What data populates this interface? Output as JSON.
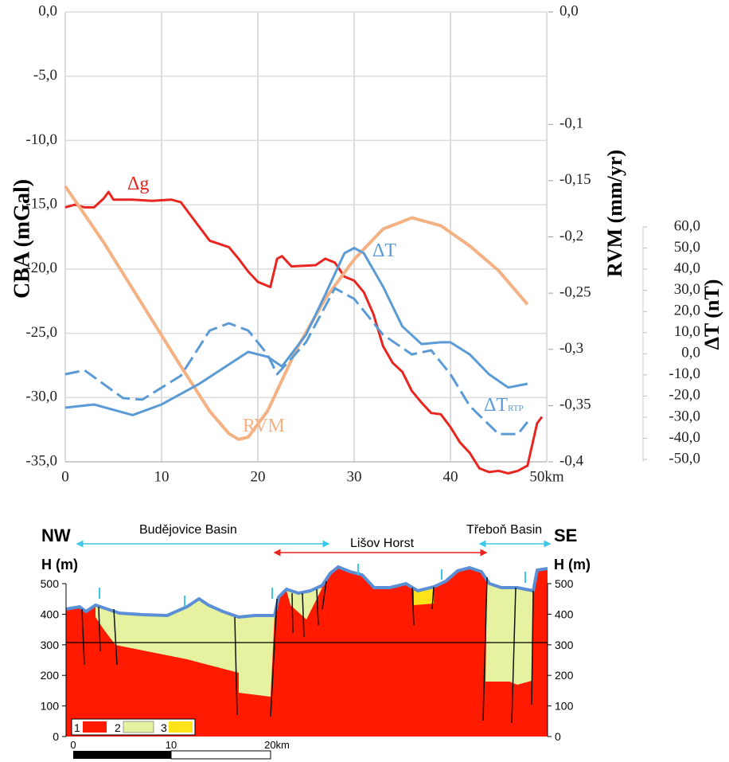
{
  "chart_data": {
    "type": "line",
    "y_label": "CBA (mGal)",
    "y2_label": "RVM (mm/yr)",
    "y3_label": "ΔT (nT)",
    "xlim": [
      0,
      50
    ],
    "xticks": [
      0,
      10,
      20,
      30,
      40,
      {
        "value": 50,
        "label": "50km"
      }
    ],
    "ylim": [
      -35,
      0
    ],
    "yticks": [
      {
        "value": 0,
        "label": "0,0"
      },
      {
        "value": -5,
        "label": "-5,0"
      },
      {
        "value": -10,
        "label": "-10,0"
      },
      {
        "value": -15,
        "label": "-15,0"
      },
      {
        "value": -20,
        "label": "-20,0"
      },
      {
        "value": -25,
        "label": "-25,0"
      },
      {
        "value": -30,
        "label": "-30,0"
      },
      {
        "value": -35,
        "label": "-35,0"
      }
    ],
    "y2lim": [
      -0.4,
      0
    ],
    "y2ticks": [
      {
        "value": 0,
        "label": "0,0"
      },
      {
        "value": -0.1,
        "label": "-0,1"
      },
      {
        "value": -0.15,
        "label": "-0,15"
      },
      {
        "value": -0.2,
        "label": "-0,2"
      },
      {
        "value": -0.25,
        "label": "-0,25"
      },
      {
        "value": -0.3,
        "label": "-0,3"
      },
      {
        "value": -0.35,
        "label": "-0,35"
      },
      {
        "value": -0.4,
        "label": "-0,4"
      }
    ],
    "y3lim": [
      -50,
      60
    ],
    "y3ticks": [
      {
        "value": 60,
        "label": "60,0"
      },
      {
        "value": 50,
        "label": "50,0"
      },
      {
        "value": 40,
        "label": "40,0"
      },
      {
        "value": 30,
        "label": "30,0"
      },
      {
        "value": 20,
        "label": "20,0"
      },
      {
        "value": 10,
        "label": "10,0"
      },
      {
        "value": 0,
        "label": "0,0"
      },
      {
        "value": -10,
        "label": "-10,0"
      },
      {
        "value": -20,
        "label": "-20,0"
      },
      {
        "value": -30,
        "label": "-30,0"
      },
      {
        "value": -40,
        "label": "-40,0"
      },
      {
        "value": -50,
        "label": "-50,0"
      }
    ],
    "grid": true,
    "series": [
      {
        "name": "Δg",
        "color": "#e8251f",
        "axis": "y",
        "dash": false,
        "x": [
          0,
          1,
          2,
          3,
          4,
          4.5,
          5,
          7,
          9,
          11,
          12,
          13,
          14,
          15,
          17,
          18,
          19,
          20,
          21.3,
          22,
          22.5,
          23.5,
          26,
          27,
          28,
          29,
          30,
          31,
          32,
          33,
          34,
          35,
          36,
          37,
          38,
          39,
          40,
          41,
          42,
          43,
          44,
          45,
          46,
          47,
          48,
          49,
          49.5
        ],
        "values": [
          -15.2,
          -15,
          -15.2,
          -15.2,
          -14.5,
          -14,
          -14.6,
          -14.6,
          -14.7,
          -14.6,
          -14.8,
          -15.8,
          -16.8,
          -17.8,
          -18.3,
          -19.2,
          -20.2,
          -21,
          -21.4,
          -19.2,
          -19,
          -19.8,
          -19.7,
          -19.2,
          -19.5,
          -20.6,
          -20.9,
          -21.8,
          -23.5,
          -26,
          -27.3,
          -28,
          -29.5,
          -30.4,
          -31.2,
          -31.3,
          -32.3,
          -33.5,
          -34.3,
          -35.5,
          -35.8,
          -35.7,
          -35.9,
          -35.7,
          -35.3,
          -32,
          -31.5
        ]
      },
      {
        "name": "RVM",
        "color": "#f4b183",
        "axis": "y2",
        "dash": false,
        "x": [
          0,
          4,
          8,
          12,
          15,
          17,
          18,
          19,
          21,
          24,
          27,
          30,
          33,
          36,
          39,
          42,
          45,
          48
        ],
        "values": [
          -0.155,
          -0.205,
          -0.26,
          -0.315,
          -0.355,
          -0.375,
          -0.38,
          -0.378,
          -0.355,
          -0.3,
          -0.255,
          -0.22,
          -0.193,
          -0.183,
          -0.19,
          -0.208,
          -0.23,
          -0.26
        ]
      },
      {
        "name": "ΔT",
        "color": "#5b9bd5",
        "axis": "y3",
        "dash": false,
        "x": [
          0,
          3,
          7,
          10,
          14,
          19,
          21,
          22.5,
          25,
          27,
          29,
          30,
          31,
          33,
          35,
          37,
          39,
          40,
          42,
          44,
          46,
          48
        ],
        "values": [
          -25.5,
          -24,
          -29,
          -24,
          -14,
          0.9,
          -1.4,
          -6,
          9,
          28,
          47.6,
          50,
          47.6,
          31.8,
          13,
          4.6,
          5.4,
          5.4,
          -0.3,
          -9.7,
          -16,
          -14.2
        ]
      },
      {
        "name": "ΔT",
        "sub": "RTP",
        "color": "#5b9bd5",
        "axis": "y3",
        "dash": true,
        "x": [
          0,
          2,
          6,
          8,
          12,
          15,
          17,
          19,
          21,
          22,
          25,
          28,
          30,
          33,
          36,
          38,
          40,
          42,
          45,
          47,
          48
        ],
        "values": [
          -9.7,
          -7.8,
          -21,
          -21.7,
          -10.4,
          11,
          14.4,
          11,
          -0.3,
          -9.7,
          5.4,
          31,
          26,
          9,
          -0.3,
          1.6,
          -9.7,
          -24.7,
          -38,
          -38,
          -32.3
        ]
      }
    ]
  },
  "section": {
    "left": "NW",
    "right": "SE",
    "h_label": "H (m)",
    "regions": [
      "Budějovice Basin",
      "Lišov Horst",
      "Třeboň Basin"
    ],
    "yticks": [
      500,
      400,
      300,
      200,
      100,
      0
    ],
    "legend": [
      "1",
      "2",
      "3"
    ],
    "scale": [
      "0",
      "10",
      "20km"
    ]
  }
}
